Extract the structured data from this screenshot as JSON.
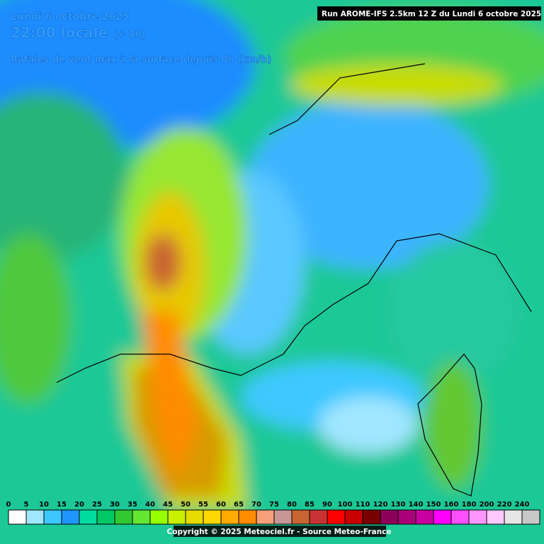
{
  "header": {
    "date": "Lundi 6 octobre 2025",
    "time": "22:00 locale",
    "offset": "(+ 8h)",
    "subtitle": "Rafales de vent max à la surface depuis 0h (km/h)",
    "run": "Run AROME-IFS 2.5km 12 Z du Lundi 6 octobre 2025"
  },
  "legend": {
    "ticks": [
      0,
      5,
      10,
      15,
      20,
      25,
      30,
      35,
      40,
      45,
      50,
      55,
      60,
      65,
      70,
      75,
      80,
      85,
      90,
      100,
      110,
      120,
      130,
      140,
      150,
      160,
      180,
      200,
      220,
      240
    ],
    "colors": [
      "#ffffff",
      "#a0e6ff",
      "#3cc8ff",
      "#1e96ff",
      "#00dca0",
      "#00c864",
      "#32c832",
      "#64e632",
      "#96ff00",
      "#c8f000",
      "#e6dc00",
      "#ffd700",
      "#ffaa00",
      "#ff8c00",
      "#f5a078",
      "#c89696",
      "#c86432",
      "#c83232",
      "#ff0000",
      "#c80000",
      "#780000",
      "#8c005a",
      "#aa0078",
      "#c800a0",
      "#ff00ff",
      "#ff50ff",
      "#ff96ff",
      "#ffc8ff",
      "#e6e6e6",
      "#c8c8c8"
    ]
  },
  "footer": {
    "copyright": "Copyright © 2025 Meteociel.fr - Source Meteo-France"
  }
}
